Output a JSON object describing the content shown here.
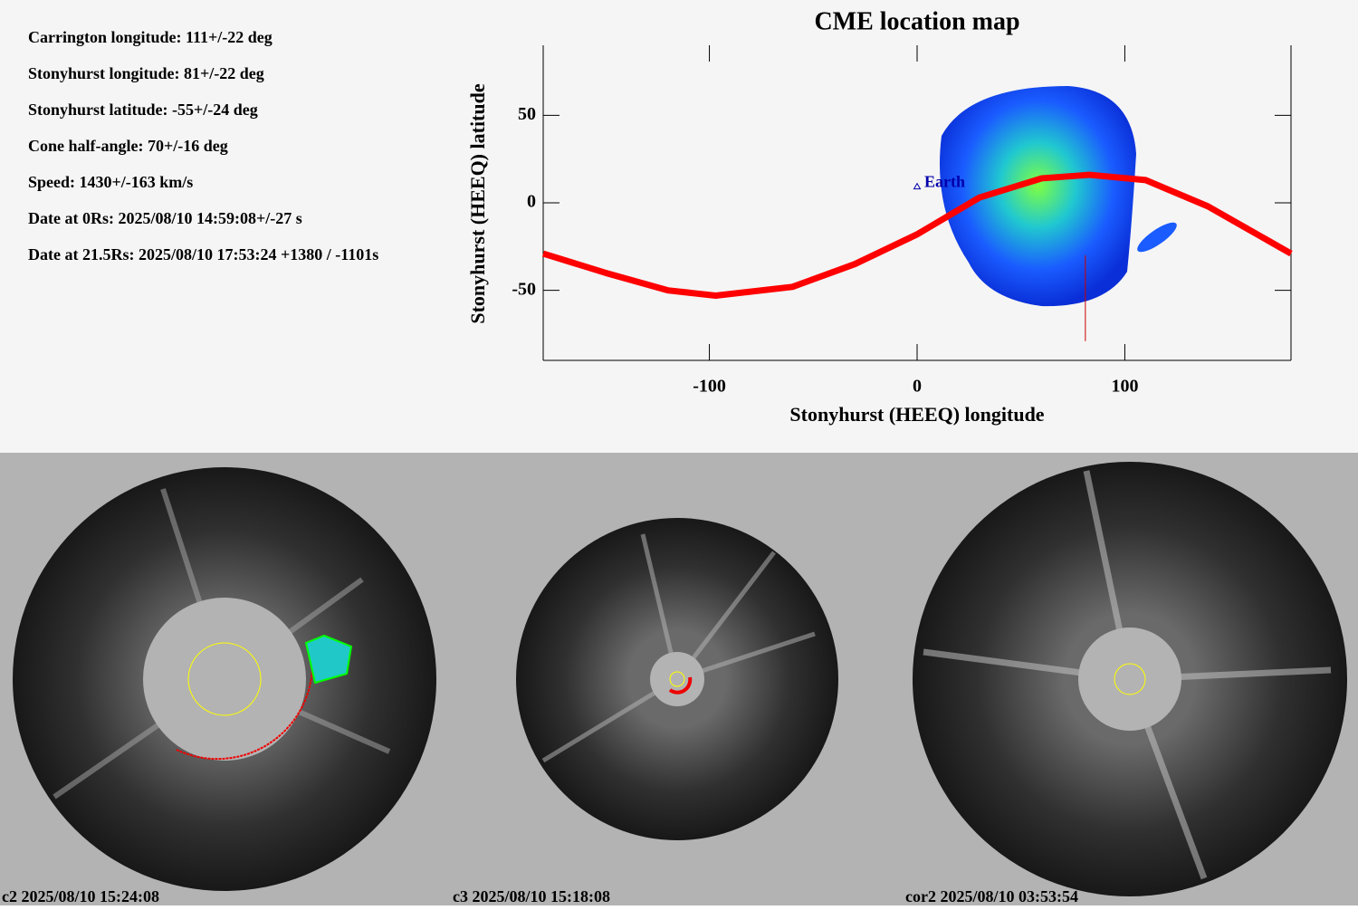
{
  "info": [
    "Carrington longitude: 111+/-22 deg",
    "Stonyhurst longitude: 81+/-22 deg",
    "Stonyhurst latitude: -55+/-24 deg",
    "Cone half-angle: 70+/-16 deg",
    "Speed: 1430+/-163 km/s",
    "Date at 0Rs: 2025/08/10 14:59:08+/-27 s",
    "Date at 21.5Rs: 2025/08/10 17:53:24 +1380 / -1101s"
  ],
  "chart_data": {
    "type": "line",
    "title": "CME location map",
    "x_label": "Stonyhurst (HEEQ) longitude",
    "y_label": "Stonyhurst (HEEQ) latitude",
    "xlim": [
      -180,
      180
    ],
    "ylim": [
      -90,
      90
    ],
    "xticks": [
      -100,
      0,
      100
    ],
    "yticks": [
      -50,
      0,
      50
    ],
    "series": [
      {
        "name": "track",
        "color": "#ff0000",
        "x": [
          -180,
          -150,
          -120,
          -97,
          -60,
          -30,
          0,
          30,
          60,
          83,
          110,
          140,
          180
        ],
        "values": [
          -29,
          -40,
          -50,
          -53,
          -48,
          -35,
          -18,
          3,
          14,
          16,
          13,
          -2,
          -29
        ]
      }
    ],
    "earth": {
      "label": "Earth",
      "x": 0,
      "y": 9
    },
    "arrow": {
      "x": 81,
      "y": [
        -79,
        -30
      ]
    }
  },
  "panels": [
    "c2 2025/08/10 15:24:08",
    "c3 2025/08/10 15:18:08",
    "cor2 2025/08/10 03:53:54"
  ]
}
